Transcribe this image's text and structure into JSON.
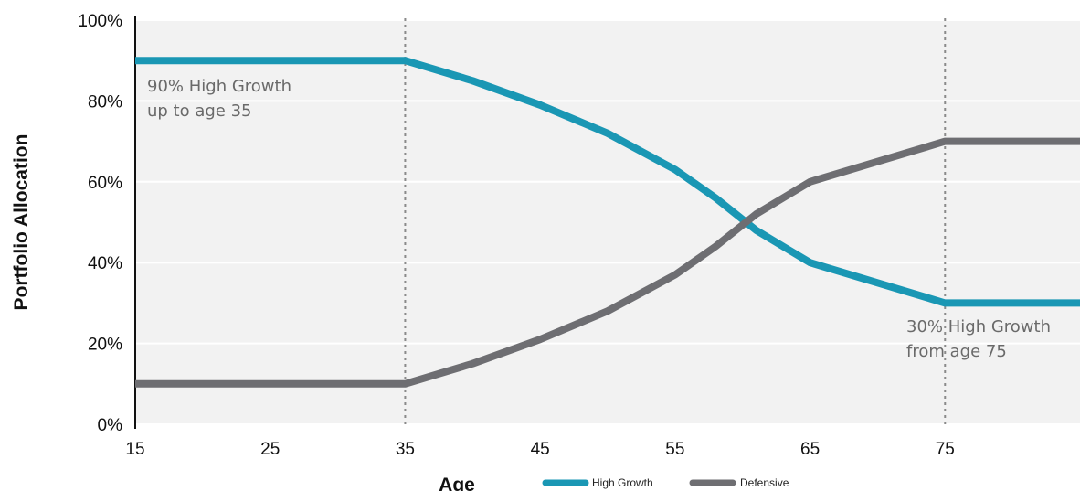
{
  "chart_data": {
    "type": "line",
    "xlabel": "Age",
    "ylabel": "Portfolio Allocation",
    "xlim": [
      15,
      85
    ],
    "ylim": [
      0,
      100
    ],
    "x_ticks": [
      "15",
      "25",
      "35",
      "45",
      "55",
      "65",
      "75"
    ],
    "y_ticks": [
      "0%",
      "20%",
      "40%",
      "60%",
      "80%",
      "100%"
    ],
    "grid": "horizontal",
    "reference_lines_x": [
      35,
      75
    ],
    "legend_position": "bottom",
    "series": [
      {
        "name": "High Growth",
        "color": "#1a97b4",
        "x": [
          15,
          35,
          40,
          45,
          50,
          55,
          58,
          61,
          63,
          65,
          70,
          75,
          85
        ],
        "y": [
          90,
          90,
          85,
          79,
          72,
          63,
          56,
          48,
          44,
          40,
          35,
          30,
          30
        ]
      },
      {
        "name": "Defensive",
        "color": "#6e6e72",
        "x": [
          15,
          35,
          40,
          45,
          50,
          55,
          58,
          61,
          63,
          65,
          70,
          75,
          85
        ],
        "y": [
          10,
          10,
          15,
          21,
          28,
          37,
          44,
          52,
          56,
          60,
          65,
          70,
          70
        ]
      }
    ],
    "annotations": [
      {
        "lines": [
          "90% High Growth",
          "up to age 35"
        ]
      },
      {
        "lines": [
          "30% High Growth",
          "from age 75"
        ]
      }
    ]
  }
}
